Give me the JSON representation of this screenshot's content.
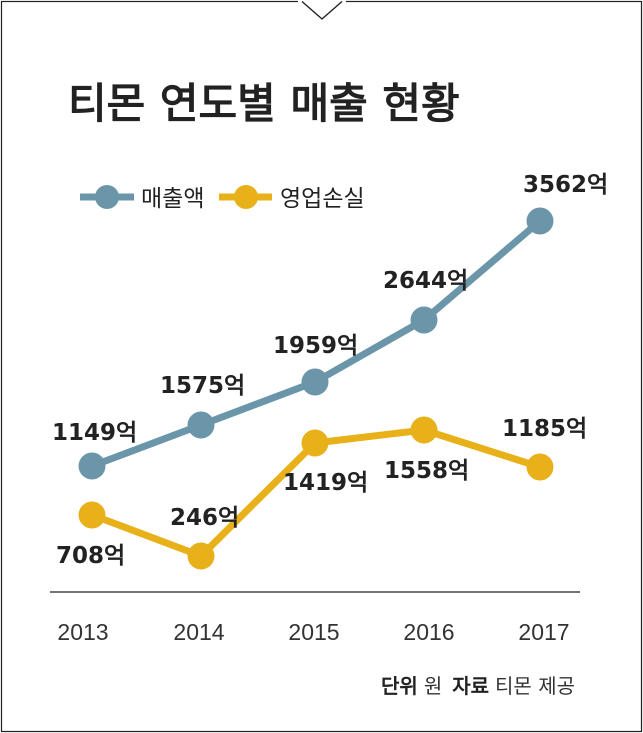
{
  "chart_data": {
    "type": "line",
    "title": "티몬 연도별 매출 현황",
    "categories": [
      "2013",
      "2014",
      "2015",
      "2016",
      "2017"
    ],
    "series": [
      {
        "name": "매출액",
        "color": "#6b96aa",
        "values": [
          1149,
          1575,
          1959,
          2644,
          3562
        ],
        "labels": [
          "1149억",
          "1575억",
          "1959억",
          "2644억",
          "3562억"
        ]
      },
      {
        "name": "영업손실",
        "color": "#e8b11a",
        "values": [
          708,
          246,
          1419,
          1558,
          1185
        ],
        "labels": [
          "708억",
          "246억",
          "1419억",
          "1558억",
          "1185억"
        ]
      }
    ],
    "legend_position": "top-left",
    "grid": false
  },
  "source": {
    "unit_label": "단위",
    "unit_value": "원",
    "source_label": "자료",
    "source_value": "티몬 제공"
  }
}
